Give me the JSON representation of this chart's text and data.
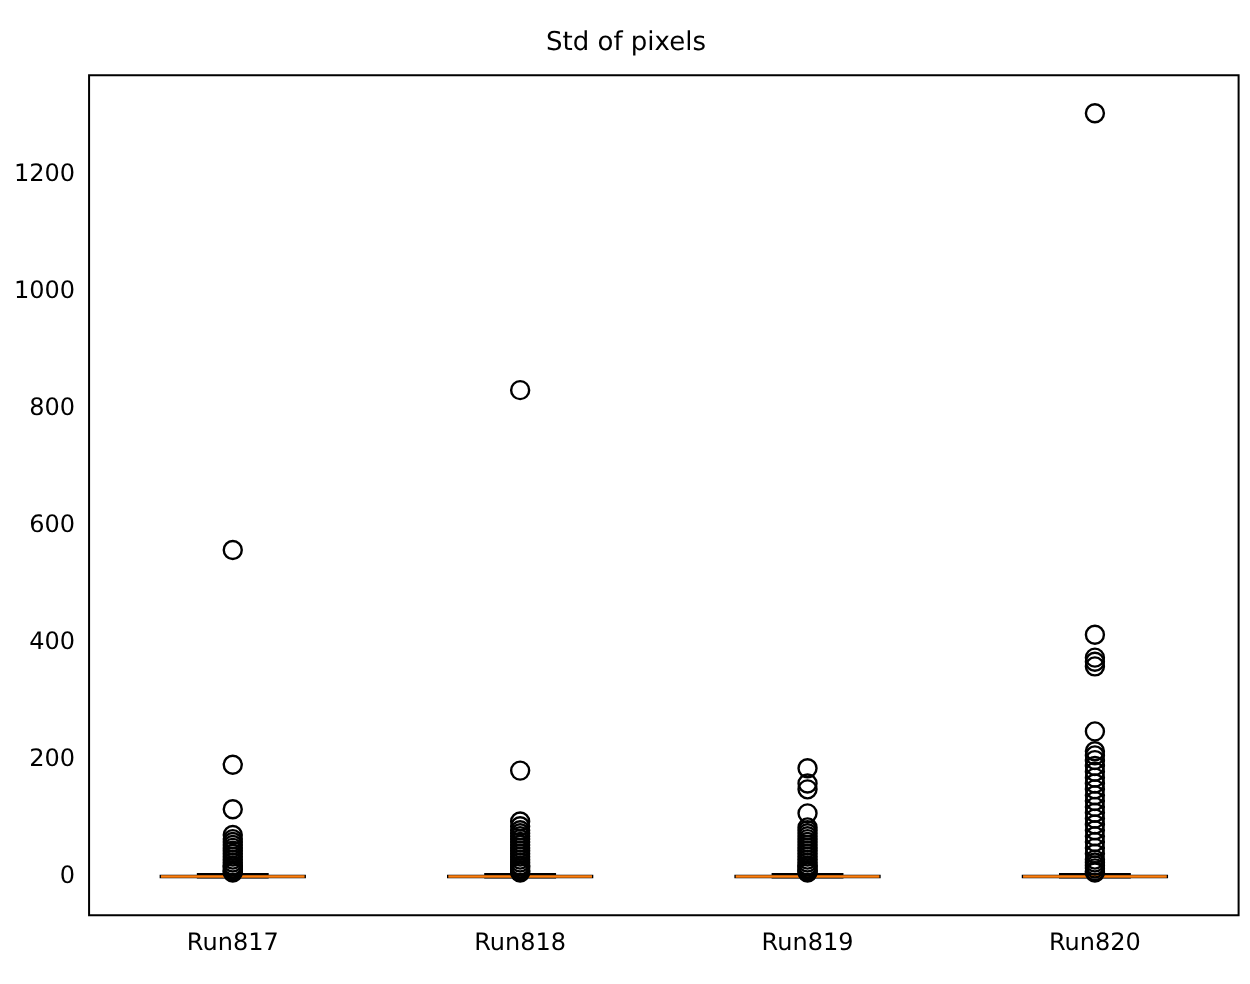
{
  "chart_data": {
    "type": "box",
    "title": "Std of pixels",
    "categories": [
      "Run817",
      "Run818",
      "Run819",
      "Run820"
    ],
    "boxes": [
      {
        "low": 0,
        "q1": 0.5,
        "median": 1,
        "q3": 2,
        "high": 5,
        "outliers": [
          8,
          10,
          12,
          15,
          18,
          20,
          25,
          30,
          35,
          40,
          45,
          50,
          55,
          60,
          65,
          72,
          116,
          192,
          559
        ]
      },
      {
        "low": 0,
        "q1": 0.5,
        "median": 1,
        "q3": 2,
        "high": 5,
        "outliers": [
          8,
          10,
          12,
          15,
          18,
          20,
          25,
          30,
          35,
          40,
          45,
          50,
          55,
          60,
          65,
          70,
          75,
          80,
          87,
          95,
          182,
          832
        ]
      },
      {
        "low": 0,
        "q1": 0.5,
        "median": 1,
        "q3": 2,
        "high": 5,
        "outliers": [
          8,
          10,
          12,
          15,
          18,
          20,
          25,
          30,
          35,
          40,
          45,
          50,
          55,
          60,
          65,
          70,
          75,
          80,
          85,
          109,
          150,
          160,
          186
        ]
      },
      {
        "low": 0,
        "q1": 0.5,
        "median": 1,
        "q3": 2,
        "high": 5,
        "outliers": [
          8,
          10,
          15,
          20,
          25,
          30,
          40,
          50,
          60,
          70,
          80,
          90,
          100,
          110,
          120,
          130,
          140,
          150,
          160,
          170,
          180,
          190,
          200,
          208,
          215,
          249,
          360,
          368,
          375,
          414,
          1305
        ]
      }
    ],
    "ylim": [
      -65,
      1370
    ],
    "yticks": [
      0,
      200,
      400,
      600,
      800,
      1000,
      1200
    ],
    "grid": false
  }
}
